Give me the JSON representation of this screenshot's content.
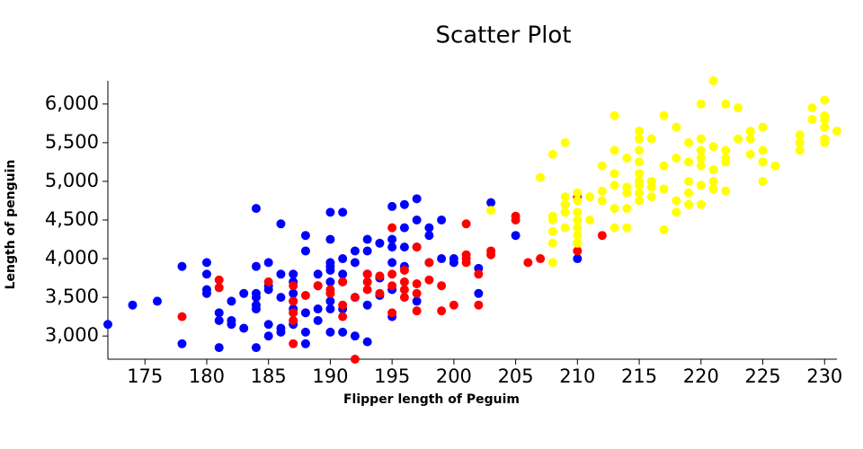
{
  "chart_data": {
    "type": "scatter",
    "title": "Scatter Plot",
    "x_label": "Flipper length of Peguim",
    "y_label": "Length of penguin",
    "xlim": [
      172,
      231
    ],
    "ylim": [
      2700,
      6300
    ],
    "xticks": [
      175,
      180,
      185,
      190,
      195,
      200,
      205,
      210,
      215,
      220,
      225,
      230
    ],
    "yticks": [
      {
        "value": 3000,
        "label": "3,000"
      },
      {
        "value": 3500,
        "label": "3,500"
      },
      {
        "value": 4000,
        "label": "4,000"
      },
      {
        "value": 4500,
        "label": "4,500"
      },
      {
        "value": 5000,
        "label": "5,000"
      },
      {
        "value": 5500,
        "label": "5,500"
      },
      {
        "value": 6000,
        "label": "6,000"
      }
    ],
    "series": [
      {
        "color": "#0000ff",
        "x": [
          172,
          174,
          176,
          178,
          178,
          180,
          180,
          180,
          180,
          181,
          181,
          181,
          182,
          182,
          182,
          183,
          183,
          184,
          184,
          184,
          184,
          184,
          184,
          184,
          185,
          185,
          185,
          185,
          185,
          186,
          186,
          186,
          186,
          186,
          187,
          187,
          187,
          187,
          187,
          187,
          188,
          188,
          188,
          188,
          188,
          189,
          189,
          189,
          189,
          190,
          190,
          190,
          190,
          190,
          190,
          190,
          190,
          190,
          191,
          191,
          191,
          191,
          191,
          191,
          192,
          192,
          192,
          192,
          193,
          193,
          193,
          193,
          193,
          194,
          194,
          194,
          195,
          195,
          195,
          195,
          195,
          195,
          196,
          196,
          196,
          196,
          197,
          197,
          197,
          197,
          198,
          198,
          198,
          199,
          199,
          200,
          200,
          202,
          202,
          203,
          205,
          210
        ],
        "values": [
          3150,
          3400,
          3450,
          3900,
          2900,
          3950,
          3800,
          3600,
          3550,
          3300,
          3200,
          2850,
          3450,
          3200,
          3150,
          3550,
          3100,
          4650,
          3900,
          3550,
          3500,
          3400,
          3350,
          2850,
          3950,
          3650,
          3600,
          3150,
          3000,
          4450,
          3800,
          3500,
          3100,
          3050,
          3800,
          3700,
          3550,
          3450,
          3350,
          3150,
          4300,
          4100,
          3300,
          3050,
          2900,
          3800,
          3650,
          3350,
          3200,
          4600,
          4250,
          3950,
          3900,
          3850,
          3700,
          3450,
          3350,
          3050,
          4600,
          4000,
          3800,
          3700,
          3050,
          3350,
          4100,
          3950,
          3500,
          3000,
          4250,
          4100,
          3800,
          3400,
          2925,
          4200,
          3750,
          3525,
          4675,
          4250,
          4150,
          3950,
          3600,
          3250,
          4700,
          4400,
          4150,
          3900,
          4775,
          4500,
          4150,
          3450,
          4400,
          4300,
          3950,
          4500,
          4000,
          4000,
          3950,
          3875,
          3550,
          4725,
          4300,
          4000
        ]
      },
      {
        "color": "#ff0000",
        "x": [
          178,
          181,
          181,
          185,
          187,
          187,
          187,
          187,
          187,
          188,
          189,
          190,
          190,
          191,
          191,
          191,
          192,
          192,
          193,
          193,
          193,
          194,
          194,
          195,
          195,
          195,
          195,
          196,
          196,
          196,
          196,
          197,
          197,
          197,
          197,
          198,
          198,
          199,
          199,
          200,
          201,
          201,
          201,
          201,
          202,
          202,
          203,
          203,
          205,
          205,
          206,
          207,
          210,
          210,
          212
        ],
        "values": [
          3250,
          3725,
          3625,
          3700,
          3650,
          3450,
          3300,
          3200,
          2900,
          3525,
          3650,
          3550,
          3600,
          3400,
          3250,
          3700,
          2700,
          3500,
          3800,
          3600,
          3700,
          3775,
          3550,
          4400,
          3800,
          3650,
          3300,
          3850,
          3700,
          3500,
          3600,
          4150,
          3675,
          3550,
          3325,
          3950,
          3725,
          3650,
          3325,
          3400,
          4450,
          4050,
          4000,
          3950,
          3800,
          3400,
          4100,
          4050,
          4550,
          4500,
          3950,
          4000,
          4800,
          4100,
          4300
        ]
      },
      {
        "color": "#ffff00",
        "x": [
          203,
          207,
          208,
          208,
          208,
          208,
          208,
          208,
          209,
          209,
          209,
          209,
          209,
          210,
          210,
          210,
          210,
          210,
          210,
          210,
          211,
          211,
          212,
          212,
          212,
          213,
          213,
          213,
          213,
          213,
          213,
          214,
          214,
          214,
          214,
          214,
          215,
          215,
          215,
          215,
          215,
          215,
          215,
          215,
          215,
          216,
          216,
          216,
          216,
          217,
          217,
          217,
          217,
          218,
          218,
          218,
          218,
          219,
          219,
          219,
          219,
          219,
          220,
          220,
          220,
          220,
          220,
          220,
          220,
          221,
          221,
          221,
          221,
          221,
          222,
          222,
          222,
          222,
          222,
          223,
          223,
          224,
          224,
          224,
          225,
          225,
          225,
          225,
          226,
          228,
          228,
          228,
          229,
          229,
          230,
          230,
          230,
          230,
          230,
          230,
          231
        ],
        "values": [
          4625,
          5050,
          5350,
          4550,
          4500,
          4350,
          4200,
          3950,
          5500,
          4800,
          4700,
          4600,
          4400,
          4850,
          4750,
          4600,
          4500,
          4400,
          4300,
          4200,
          4800,
          4500,
          5200,
          4875,
          4750,
          5850,
          5400,
          5100,
          4950,
          4650,
          4400,
          5300,
          4925,
          4850,
          4650,
          4400,
          5650,
          5550,
          5400,
          5250,
          5100,
          5000,
          4950,
          4850,
          4750,
          5550,
          5000,
          4925,
          4800,
          5850,
          5200,
          4900,
          4375,
          5700,
          5300,
          4750,
          4600,
          5500,
          5250,
          5000,
          4850,
          4700,
          6000,
          5550,
          5400,
          5300,
          5200,
          4950,
          4700,
          6300,
          5450,
          5150,
          5000,
          4900,
          6000,
          5400,
          5300,
          5250,
          4875,
          5950,
          5550,
          5650,
          5550,
          5350,
          5700,
          5400,
          5250,
          5000,
          5200,
          5600,
          5500,
          5400,
          5950,
          5800,
          6050,
          5850,
          5800,
          5700,
          5550,
          5500,
          5650
        ]
      }
    ]
  }
}
